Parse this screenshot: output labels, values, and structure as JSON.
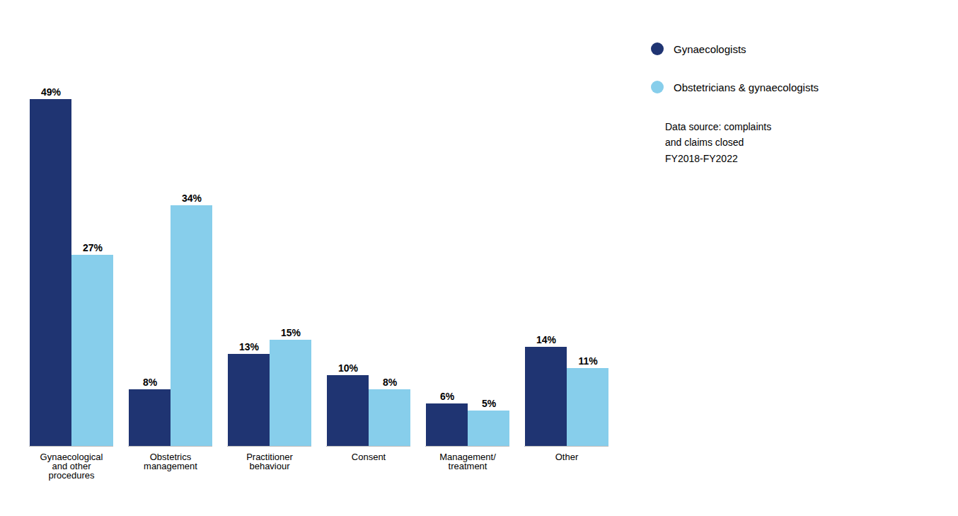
{
  "chart_data": {
    "type": "bar",
    "categories": [
      "Gynaecological\nand other\nprocedures",
      "Obstetrics\nmanagement",
      "Practitioner\nbehaviour",
      "Consent",
      "Management/\ntreatment",
      "Other"
    ],
    "series": [
      {
        "name": "Gynaecologists",
        "color": "#1f3472",
        "values": [
          49,
          8,
          13,
          10,
          6,
          14
        ],
        "value_labels": [
          "49%",
          "8%",
          "13%",
          "10%",
          "6%",
          "14%"
        ]
      },
      {
        "name": "Obstetricians & gynaecologists",
        "color": "#87ceeb",
        "values": [
          27,
          34,
          15,
          8,
          5,
          11
        ],
        "value_labels": [
          "27%",
          "34%",
          "15%",
          "8%",
          "5%",
          "11%"
        ]
      }
    ],
    "ylim": [
      0,
      58
    ],
    "data_labels": true,
    "tick_labels": "x",
    "legend": "right",
    "annotations": [
      "Data source: complaints\nand claims closed\nFY2018-FY2022"
    ]
  }
}
